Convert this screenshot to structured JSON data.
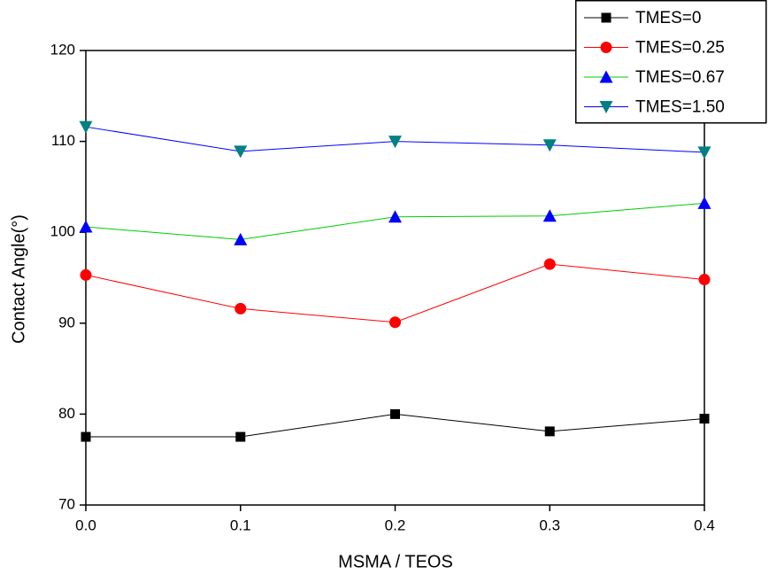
{
  "chart_data": {
    "type": "line",
    "x_label": "MSMA / TEOS",
    "y_label": "Contact Angle(°)",
    "x": [
      0,
      0.1,
      0.2,
      0.3,
      0.4
    ],
    "xlim": [
      0,
      0.4
    ],
    "xticks": [
      {
        "value": 0,
        "label": "0.0"
      },
      0.1,
      0.2,
      0.3,
      0.4
    ],
    "ylim": [
      70,
      120
    ],
    "yticks": [
      70,
      80,
      90,
      100,
      110,
      120
    ],
    "legend": "top-right",
    "series": [
      {
        "name": "TMES=0",
        "color": "#000000",
        "line_color": "#000000",
        "marker": "square",
        "values": [
          77.5,
          77.5,
          80,
          78.1,
          79.5
        ]
      },
      {
        "name": "TMES=0.25",
        "color": "#ff0000",
        "line_color": "#ff0000",
        "marker": "circle",
        "values": [
          95.3,
          91.6,
          90.1,
          96.5,
          94.8
        ]
      },
      {
        "name": "TMES=0.67",
        "color": "#0000ff",
        "line_color": "#00cc00",
        "marker": "triangle-up",
        "values": [
          100.6,
          99.2,
          101.7,
          101.8,
          103.2
        ]
      },
      {
        "name": "TMES=1.50",
        "color": "#008080",
        "line_color": "#0000ff",
        "marker": "triangle-down",
        "values": [
          111.6,
          108.9,
          110,
          109.6,
          108.8
        ]
      }
    ]
  }
}
